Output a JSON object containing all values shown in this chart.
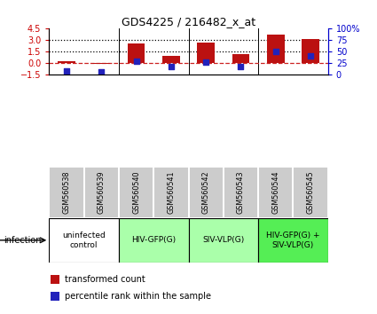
{
  "title": "GDS4225 / 216482_x_at",
  "samples": [
    "GSM560538",
    "GSM560539",
    "GSM560540",
    "GSM560541",
    "GSM560542",
    "GSM560543",
    "GSM560544",
    "GSM560545"
  ],
  "red_values": [
    0.2,
    -0.12,
    2.55,
    0.9,
    2.6,
    1.1,
    3.7,
    3.1
  ],
  "blue_values_raw": [
    -1.05,
    -1.15,
    0.18,
    -0.48,
    0.1,
    -0.48,
    1.45,
    0.9
  ],
  "ylim_left": [
    -1.5,
    4.5
  ],
  "ylim_right": [
    0,
    100
  ],
  "yticks_left": [
    -1.5,
    0,
    1.5,
    3,
    4.5
  ],
  "yticks_right": [
    0,
    25,
    50,
    75,
    100
  ],
  "hlines": [
    1.5,
    3.0
  ],
  "zero_line": 0.0,
  "groups": [
    {
      "label": "uninfected\ncontrol",
      "start": 0,
      "end": 2,
      "color": "#ffffff"
    },
    {
      "label": "HIV-GFP(G)",
      "start": 2,
      "end": 4,
      "color": "#aaffaa"
    },
    {
      "label": "SIV-VLP(G)",
      "start": 4,
      "end": 6,
      "color": "#aaffaa"
    },
    {
      "label": "HIV-GFP(G) +\nSIV-VLP(G)",
      "start": 6,
      "end": 8,
      "color": "#55ee55"
    }
  ],
  "bar_color": "#bb1111",
  "blue_color": "#2222bb",
  "bar_width": 0.5,
  "infection_label": "infection",
  "legend_red": "transformed count",
  "legend_blue": "percentile rank within the sample",
  "bg_color_sample": "#cccccc",
  "dotted_line_color": "#000000",
  "zero_dashed_color": "#cc2222",
  "spine_color_left": "#cc0000",
  "spine_color_right": "#0000cc"
}
